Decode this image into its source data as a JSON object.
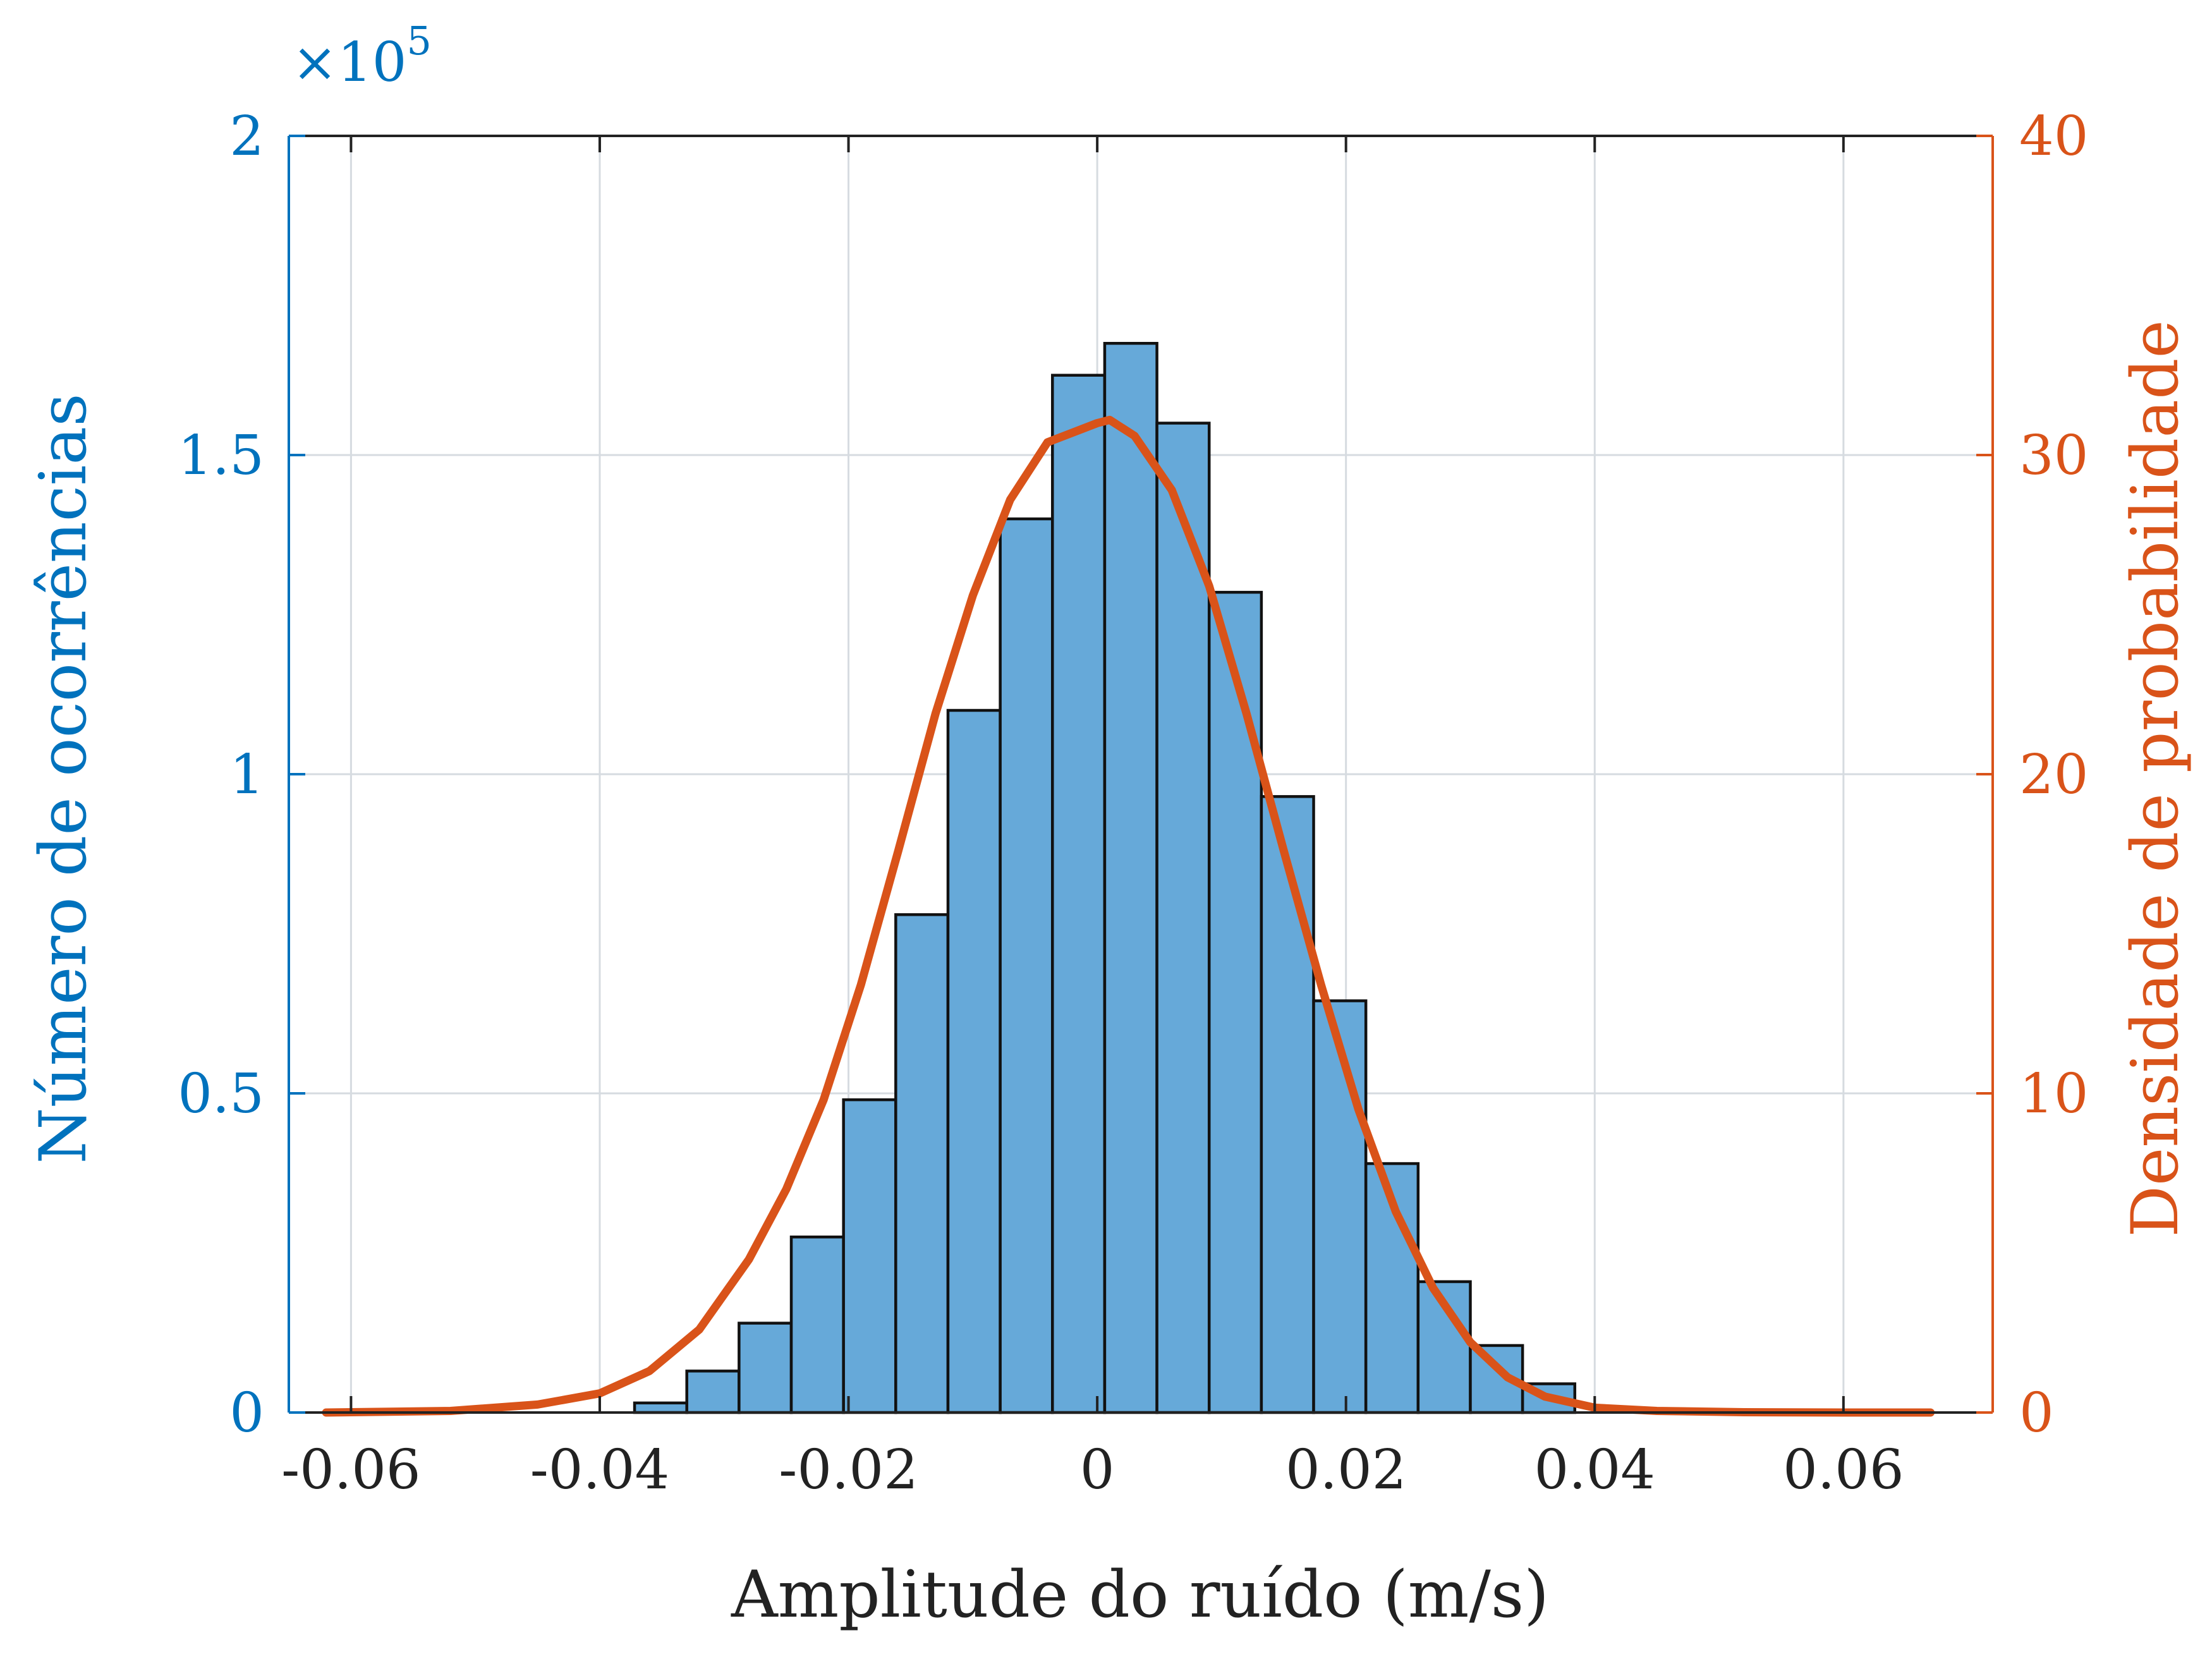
{
  "chart_data": {
    "type": "bar",
    "xlabel": "Amplitude do ruído (m/s)",
    "ylabel": "Número de ocorrências",
    "y2label": "Densidade de probabilidade",
    "xlim": [
      -0.065,
      0.072
    ],
    "ylim": [
      0,
      200000
    ],
    "y2lim": [
      0,
      40
    ],
    "xticks": [
      -0.06,
      -0.04,
      -0.02,
      0,
      0.02,
      0.04,
      0.06
    ],
    "xtick_labels": [
      "-0.06",
      "-0.04",
      "-0.02",
      "0",
      "0.02",
      "0.04",
      "0.06"
    ],
    "yticks": [
      0,
      50000,
      100000,
      150000,
      200000
    ],
    "ytick_labels": [
      "0",
      "0.5",
      "1",
      "1.5",
      "2"
    ],
    "y_exponent_label": "×10",
    "y_exponent_power": "5",
    "y2ticks": [
      0,
      10,
      20,
      30,
      40
    ],
    "y2tick_labels": [
      "0",
      "10",
      "20",
      "30",
      "40"
    ],
    "grid": true,
    "legend": "none",
    "colors": {
      "bars": "#66a9d9",
      "bar_edge": "#111111",
      "pdf": "#d95319",
      "left_axis": "#0072bd",
      "right_axis": "#d95319",
      "grid": "#d6dbe0"
    },
    "histogram": {
      "bin_edges": [
        -0.0372,
        -0.033,
        -0.0288,
        -0.0246,
        -0.0204,
        -0.0162,
        -0.012,
        -0.0078,
        -0.0036,
        0.0006,
        0.0048,
        0.009,
        0.0132,
        0.0174,
        0.0216,
        0.0258,
        0.03,
        0.0342,
        0.0384
      ],
      "counts": [
        1500,
        6500,
        14000,
        27500,
        49000,
        78000,
        110000,
        140000,
        162500,
        167500,
        155000,
        128500,
        96500,
        64500,
        39000,
        20500,
        10500,
        4500
      ]
    },
    "pdf_series": {
      "x": [
        -0.062,
        -0.052,
        -0.045,
        -0.04,
        -0.036,
        -0.032,
        -0.028,
        -0.025,
        -0.022,
        -0.019,
        -0.016,
        -0.013,
        -0.01,
        -0.007,
        -0.004,
        0.0,
        0.001,
        0.003,
        0.006,
        0.009,
        0.012,
        0.015,
        0.018,
        0.021,
        0.024,
        0.027,
        0.03,
        0.033,
        0.036,
        0.04,
        0.045,
        0.052,
        0.06,
        0.067
      ],
      "y": [
        0.0,
        0.05,
        0.25,
        0.6,
        1.3,
        2.6,
        4.8,
        7.0,
        9.8,
        13.4,
        17.6,
        21.9,
        25.6,
        28.6,
        30.4,
        31.0,
        31.1,
        30.6,
        28.9,
        25.9,
        21.9,
        17.6,
        13.4,
        9.5,
        6.3,
        3.9,
        2.2,
        1.1,
        0.5,
        0.15,
        0.05,
        0.01,
        0.0,
        0.0
      ]
    }
  }
}
